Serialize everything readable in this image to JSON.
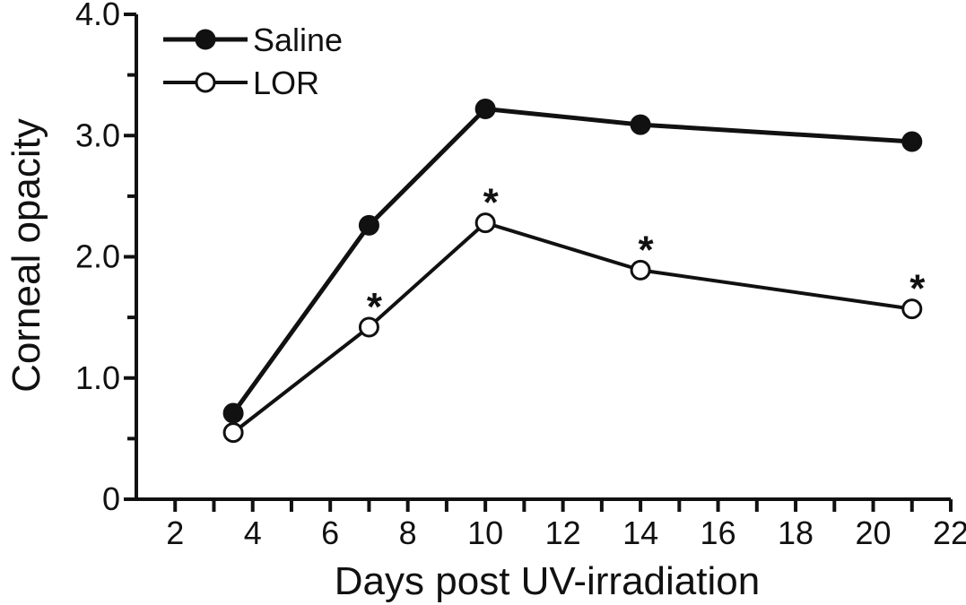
{
  "chart_data": {
    "type": "line",
    "title": "",
    "xlabel": "Days post UV-irradiation",
    "ylabel": "Corneal opacity",
    "xlim": [
      1,
      22
    ],
    "ylim": [
      0,
      4
    ],
    "x_ticks": [
      2,
      4,
      6,
      8,
      10,
      12,
      14,
      16,
      18,
      20,
      22
    ],
    "y_ticks": [
      0,
      1,
      2,
      3,
      4
    ],
    "x_tick_labels": [
      "2",
      "4",
      "6",
      "8",
      "10",
      "12",
      "14",
      "16",
      "18",
      "20",
      "22"
    ],
    "y_tick_labels": [
      "0",
      "1.0",
      "2.0",
      "3.0",
      "4.0"
    ],
    "grid": false,
    "legend_position": "top-left",
    "series": [
      {
        "name": "Saline",
        "marker": "filled-circle",
        "color": "#111111",
        "points": [
          {
            "x": 3.5,
            "y": 0.71
          },
          {
            "x": 7.0,
            "y": 2.26
          },
          {
            "x": 10.0,
            "y": 3.22
          },
          {
            "x": 14.0,
            "y": 3.09
          },
          {
            "x": 21.0,
            "y": 2.95
          }
        ]
      },
      {
        "name": "LOR",
        "marker": "open-circle",
        "color": "#111111",
        "points": [
          {
            "x": 3.5,
            "y": 0.55
          },
          {
            "x": 7.0,
            "y": 1.42
          },
          {
            "x": 10.0,
            "y": 2.28
          },
          {
            "x": 14.0,
            "y": 1.89
          },
          {
            "x": 21.0,
            "y": 1.57
          }
        ]
      }
    ],
    "annotations": [
      {
        "text": "*",
        "x": 7.0,
        "y": 1.42
      },
      {
        "text": "*",
        "x": 10.0,
        "y": 2.28
      },
      {
        "text": "*",
        "x": 14.0,
        "y": 1.89
      },
      {
        "text": "*",
        "x": 21.0,
        "y": 1.57
      }
    ]
  }
}
